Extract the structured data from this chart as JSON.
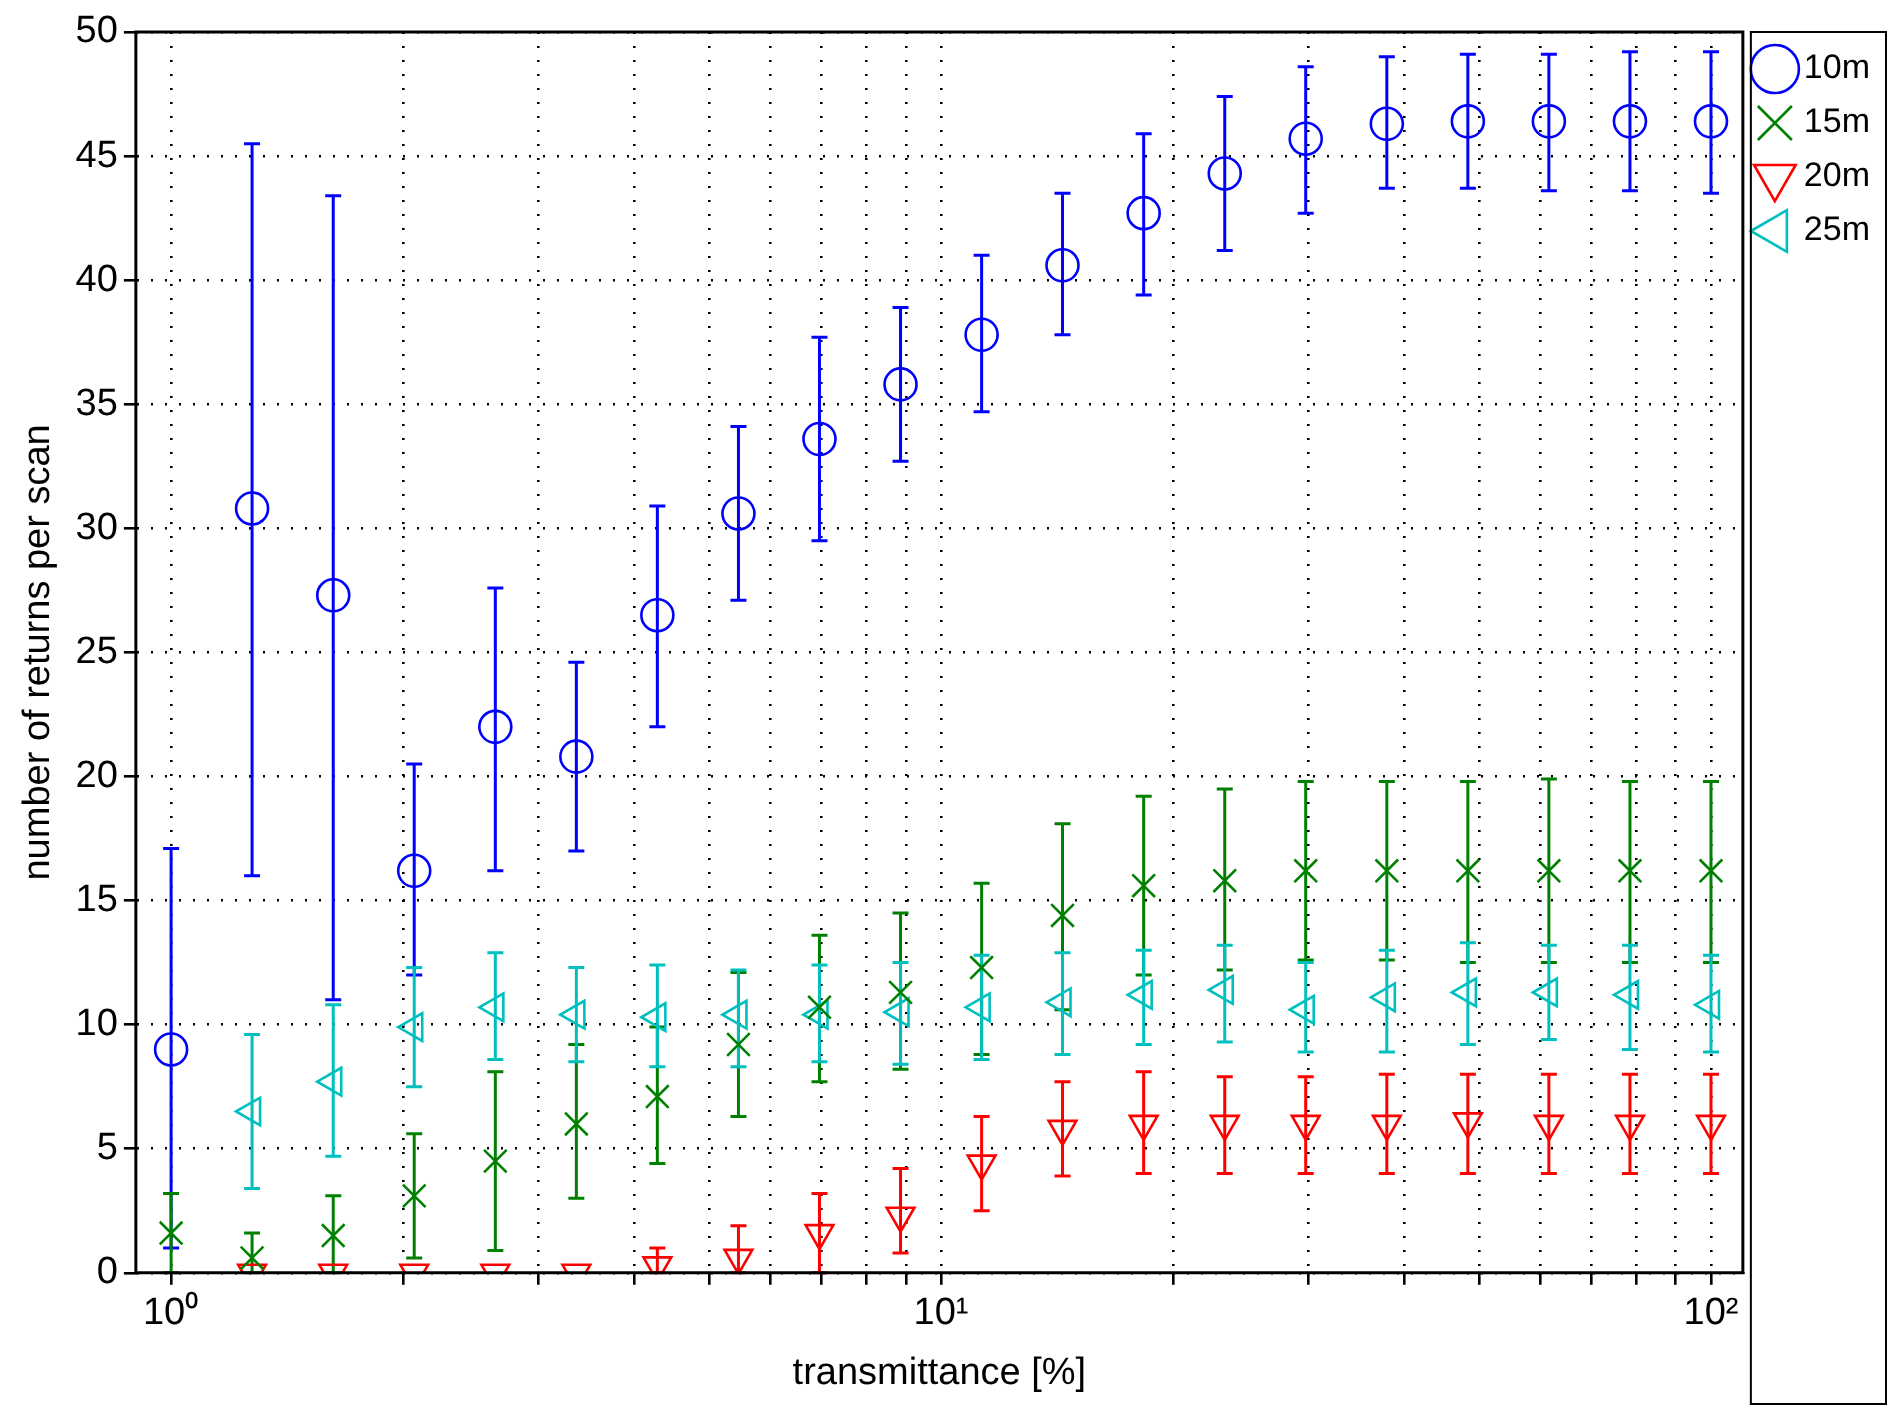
{
  "chart_data": {
    "type": "scatter",
    "xlabel": "transmittance [%]",
    "ylabel": "number of returns per scan",
    "x": [
      1,
      1.274,
      1.624,
      2.069,
      2.637,
      3.36,
      4.281,
      5.456,
      6.952,
      8.859,
      11.29,
      14.38,
      18.33,
      23.36,
      29.76,
      37.93,
      48.33,
      61.58,
      78.48,
      100
    ],
    "series": [
      {
        "name": "10m",
        "color": "#0000ff",
        "marker": "circle",
        "values": [
          9.0,
          30.8,
          27.3,
          16.2,
          22.0,
          20.8,
          26.5,
          30.6,
          33.6,
          35.8,
          37.8,
          40.6,
          42.7,
          44.3,
          45.7,
          46.3,
          46.4,
          46.4,
          46.4,
          46.4
        ],
        "errors": [
          [
            1,
            17.1
          ],
          [
            16,
            45.5
          ],
          [
            11,
            43.4
          ],
          [
            12,
            20.5
          ],
          [
            16.2,
            27.6
          ],
          [
            17,
            24.6
          ],
          [
            22,
            30.9
          ],
          [
            27.1,
            34.1
          ],
          [
            29.5,
            37.7
          ],
          [
            32.7,
            38.9
          ],
          [
            34.7,
            41
          ],
          [
            37.8,
            43.5
          ],
          [
            39.4,
            45.9
          ],
          [
            41.2,
            47.4
          ],
          [
            42.7,
            48.6
          ],
          [
            43.7,
            49
          ],
          [
            43.7,
            49.1
          ],
          [
            43.6,
            49.1
          ],
          [
            43.6,
            49.2
          ],
          [
            43.5,
            49.2
          ]
        ]
      },
      {
        "name": "15m",
        "color": "#008000",
        "marker": "cross",
        "values": [
          1.6,
          0.6,
          1.5,
          3.1,
          4.5,
          6.0,
          7.1,
          9.2,
          10.7,
          11.3,
          12.3,
          14.4,
          15.6,
          15.8,
          16.2,
          16.2,
          16.2,
          16.2,
          16.2,
          16.2
        ],
        "errors": [
          [
            0,
            3.2
          ],
          [
            0,
            1.6
          ],
          [
            0,
            3.1
          ],
          [
            0.6,
            5.6
          ],
          [
            0.9,
            8.1
          ],
          [
            3.0,
            9.2
          ],
          [
            4.4,
            9.9
          ],
          [
            6.3,
            12.1
          ],
          [
            7.7,
            13.6
          ],
          [
            8.2,
            14.5
          ],
          [
            8.8,
            15.7
          ],
          [
            10.6,
            18.1
          ],
          [
            12.0,
            19.2
          ],
          [
            12.2,
            19.5
          ],
          [
            12.6,
            19.8
          ],
          [
            12.6,
            19.8
          ],
          [
            12.5,
            19.8
          ],
          [
            12.5,
            19.9
          ],
          [
            12.5,
            19.8
          ],
          [
            12.5,
            19.8
          ]
        ]
      },
      {
        "name": "20m",
        "color": "#ff0000",
        "marker": "triangle-down",
        "values": [
          null,
          0,
          0,
          0,
          0,
          0,
          0.3,
          0.6,
          1.6,
          2.3,
          4.4,
          5.8,
          6.0,
          6.0,
          6.0,
          6.0,
          6.1,
          6.0,
          6.0,
          6.0
        ],
        "errors": [
          null,
          null,
          null,
          null,
          null,
          null,
          [
            0,
            1.0
          ],
          [
            0,
            1.9
          ],
          [
            0,
            3.2
          ],
          [
            0.8,
            4.2
          ],
          [
            2.5,
            6.3
          ],
          [
            3.9,
            7.7
          ],
          [
            4.0,
            8.1
          ],
          [
            4.0,
            7.9
          ],
          [
            4.0,
            7.9
          ],
          [
            4.0,
            8.0
          ],
          [
            4.0,
            8.0
          ],
          [
            4.0,
            8.0
          ],
          [
            4.0,
            8.0
          ],
          [
            4.0,
            8.0
          ]
        ]
      },
      {
        "name": "25m",
        "color": "#00bfbf",
        "marker": "triangle-left",
        "values": [
          null,
          6.5,
          7.7,
          9.9,
          10.7,
          10.4,
          10.3,
          10.4,
          10.4,
          10.5,
          10.7,
          10.9,
          11.2,
          11.4,
          10.6,
          11.1,
          11.3,
          11.3,
          11.2,
          10.8
        ],
        "errors": [
          null,
          [
            3.4,
            9.6
          ],
          [
            4.7,
            10.8
          ],
          [
            7.5,
            12.3
          ],
          [
            8.6,
            12.9
          ],
          [
            8.5,
            12.3
          ],
          [
            8.3,
            12.4
          ],
          [
            8.3,
            12.2
          ],
          [
            8.5,
            12.4
          ],
          [
            8.4,
            12.5
          ],
          [
            8.6,
            12.8
          ],
          [
            8.8,
            12.9
          ],
          [
            9.2,
            13.0
          ],
          [
            9.3,
            13.2
          ],
          [
            8.9,
            12.5
          ],
          [
            8.9,
            13.0
          ],
          [
            9.2,
            13.3
          ],
          [
            9.4,
            13.2
          ],
          [
            9.0,
            13.2
          ],
          [
            8.9,
            12.8
          ]
        ]
      }
    ],
    "log": "x",
    "xlim": [
      0.9,
      110
    ],
    "xticks": [
      {
        "value": 1,
        "label": "10⁰"
      },
      {
        "value": 2,
        "label": null
      },
      {
        "value": 3,
        "label": null
      },
      {
        "value": 4,
        "label": null
      },
      {
        "value": 5,
        "label": null
      },
      {
        "value": 6,
        "label": null
      },
      {
        "value": 7,
        "label": null
      },
      {
        "value": 8,
        "label": null
      },
      {
        "value": 9,
        "label": null
      },
      {
        "value": 10,
        "label": "10¹"
      },
      {
        "value": 20,
        "label": null
      },
      {
        "value": 30,
        "label": null
      },
      {
        "value": 40,
        "label": null
      },
      {
        "value": 50,
        "label": null
      },
      {
        "value": 60,
        "label": null
      },
      {
        "value": 70,
        "label": null
      },
      {
        "value": 80,
        "label": null
      },
      {
        "value": 90,
        "label": null
      },
      {
        "value": 100,
        "label": "10²"
      }
    ],
    "ylim": [
      0,
      50
    ],
    "yticks": [
      0,
      5,
      10,
      15,
      20,
      25,
      30,
      35,
      40,
      45,
      50
    ],
    "grid": true,
    "legend": "top right"
  }
}
